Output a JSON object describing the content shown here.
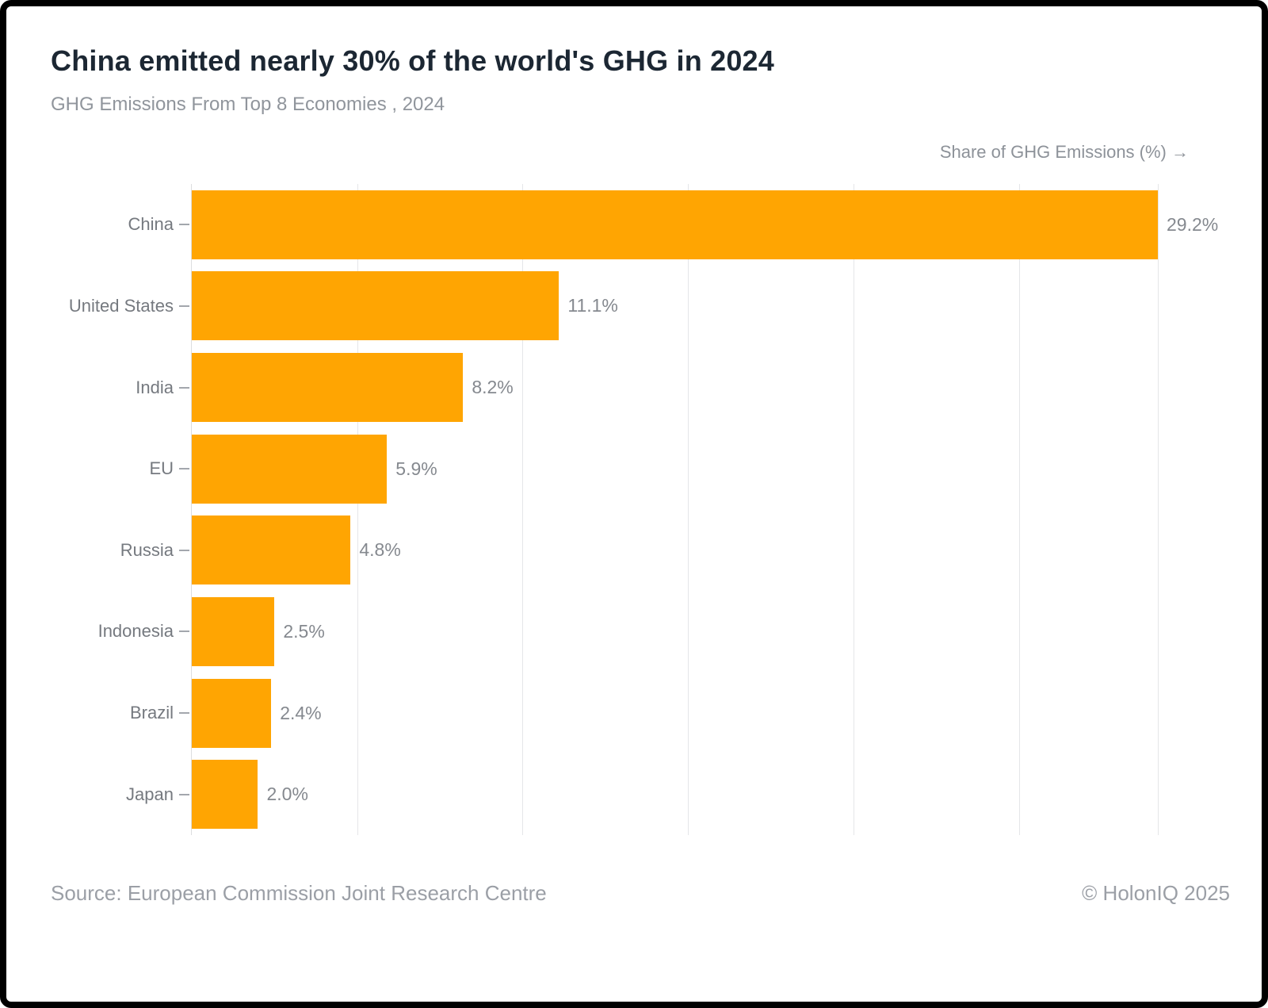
{
  "header": {
    "title": "China emitted nearly 30% of the world's GHG in 2024",
    "subtitle": "GHG Emissions From Top 8 Economies , 2024"
  },
  "axis": {
    "title": "Share of GHG Emissions (%) →"
  },
  "footer": {
    "source": "Source: European Commission Joint Research Centre",
    "copyright": "© HolonIQ 2025"
  },
  "colors": {
    "bar": "#FFA502",
    "gridline": "#e5e6e8",
    "axis_line": "#dcdddf",
    "title_text": "#1c2733",
    "subtitle_text": "#90959c",
    "category_label": "#75797f",
    "value_label": "#85898f",
    "footer_text": "#9b9fa6",
    "frame_border": "#000000"
  },
  "chart_data": {
    "type": "bar",
    "orientation": "horizontal",
    "title": "China emitted nearly 30% of the world's GHG in 2024",
    "subtitle": "GHG Emissions From Top 8 Economies , 2024",
    "xlabel": "Share of GHG Emissions (%)",
    "ylabel": "",
    "categories": [
      "China",
      "United States",
      "India",
      "EU",
      "Russia",
      "Indonesia",
      "Brazil",
      "Japan"
    ],
    "values": [
      29.2,
      11.1,
      8.2,
      5.9,
      4.8,
      2.5,
      2.4,
      2.0
    ],
    "value_labels": [
      "29.2%",
      "11.1%",
      "8.2%",
      "5.9%",
      "4.8%",
      "2.5%",
      "2.4%",
      "2.0%"
    ],
    "xlim": [
      0,
      29.2
    ],
    "gridlines_pct": [
      5,
      10,
      15,
      20,
      25,
      29.2
    ],
    "grid": true,
    "legend": false
  }
}
